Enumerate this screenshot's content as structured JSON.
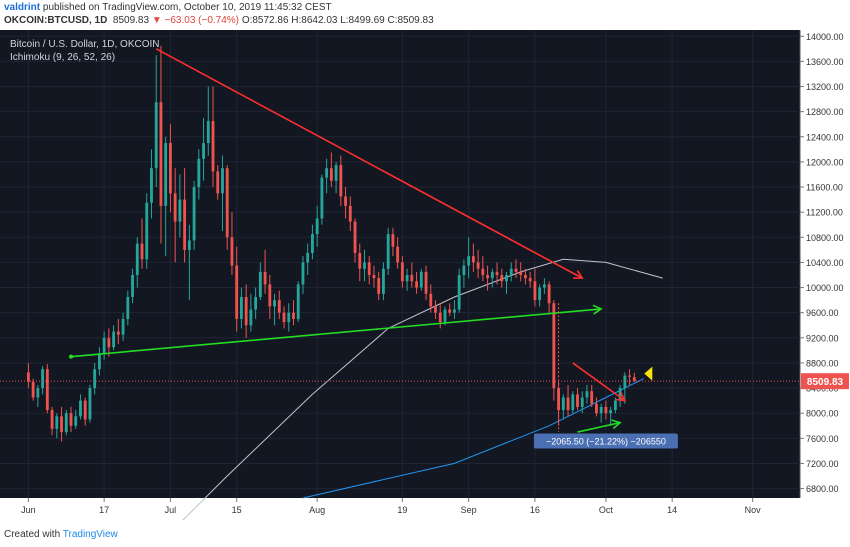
{
  "header": {
    "author": "valdrint",
    "published": " published on TradingView.com, October 10, 2019 11:45:32 CEST",
    "symbol": "OKCOIN:BTCUSD, 1D",
    "last": "8509.83",
    "change": "▼ −63.03 (−0.74%)",
    "ohlc": "O:8572.86 H:8642.03 L:8499.69 C:8509.83"
  },
  "legend": {
    "title": "Bitcoin / U.S. Dollar, 1D, OKCOIN",
    "indicator": "Ichimoku (9, 26, 52, 26)"
  },
  "price_tag": "8509.83",
  "measure_label": "−2065.50 (−21.22%) −206550",
  "footer": {
    "created_with": "Created with",
    "brand": "TradingView"
  },
  "colors": {
    "background": "#131722",
    "up": "#26a69a",
    "down": "#ef5350",
    "resistance": "#ff2e2e",
    "support": "#22dd22",
    "ma_long": "#c0c3cc",
    "ma_short": "#2196f3",
    "tag": "#ef5350",
    "measure": "#4a6fb3",
    "marker": "#f5e50a"
  },
  "chart_data": {
    "type": "candlestick",
    "title": "Bitcoin / U.S. Dollar, 1D, OKCOIN",
    "y_ticks": [
      6800,
      7200,
      7600,
      8000,
      8400,
      8800,
      9200,
      9600,
      10000,
      10400,
      10800,
      11200,
      11600,
      12000,
      12400,
      12800,
      13200,
      13600,
      14000
    ],
    "ylim": [
      6650,
      14100
    ],
    "x_ticks": [
      "Jun",
      "17",
      "Jul",
      "15",
      "Aug",
      "19",
      "Sep",
      "16",
      "Oct",
      "14",
      "Nov"
    ],
    "x_tick_days": [
      0,
      16,
      30,
      44,
      61,
      79,
      93,
      107,
      122,
      136,
      153
    ],
    "xlim": [
      -6,
      163
    ],
    "last_price": 8509.83,
    "candles_ohlc": [
      [
        8650,
        8800,
        8400,
        8500
      ],
      [
        8500,
        8550,
        8200,
        8250
      ],
      [
        8250,
        8450,
        8100,
        8400
      ],
      [
        8400,
        8750,
        8300,
        8700
      ],
      [
        8700,
        8780,
        8000,
        8050
      ],
      [
        8050,
        8100,
        7650,
        7750
      ],
      [
        7750,
        8000,
        7600,
        7950
      ],
      [
        7950,
        8100,
        7550,
        7700
      ],
      [
        7700,
        8050,
        7650,
        8000
      ],
      [
        8000,
        8100,
        7700,
        7800
      ],
      [
        7800,
        8050,
        7750,
        7950
      ],
      [
        7950,
        8300,
        7900,
        8200
      ],
      [
        8200,
        8250,
        7800,
        7900
      ],
      [
        7900,
        8450,
        7850,
        8400
      ],
      [
        8400,
        8800,
        8300,
        8700
      ],
      [
        8700,
        9050,
        8600,
        8950
      ],
      [
        8950,
        9300,
        8850,
        9200
      ],
      [
        9200,
        9350,
        8900,
        9050
      ],
      [
        9050,
        9400,
        9000,
        9300
      ],
      [
        9300,
        9500,
        9100,
        9250
      ],
      [
        9250,
        9600,
        9150,
        9500
      ],
      [
        9500,
        9950,
        9400,
        9850
      ],
      [
        9850,
        10300,
        9750,
        10200
      ],
      [
        10200,
        10800,
        10000,
        10700
      ],
      [
        10700,
        11100,
        10300,
        10450
      ],
      [
        10450,
        11500,
        10300,
        11350
      ],
      [
        11350,
        12200,
        11100,
        11900
      ],
      [
        11900,
        13700,
        11600,
        12950
      ],
      [
        12950,
        13850,
        10700,
        11300
      ],
      [
        11300,
        12400,
        10500,
        12300
      ],
      [
        12300,
        12600,
        11200,
        11500
      ],
      [
        11500,
        11900,
        10400,
        11050
      ],
      [
        11050,
        11800,
        10800,
        11400
      ],
      [
        11400,
        11900,
        10400,
        10600
      ],
      [
        10600,
        11000,
        9800,
        10750
      ],
      [
        10750,
        11700,
        10600,
        11600
      ],
      [
        11600,
        12200,
        11400,
        12050
      ],
      [
        12050,
        12700,
        11700,
        12300
      ],
      [
        12300,
        13200,
        12100,
        12650
      ],
      [
        12650,
        13200,
        11600,
        11850
      ],
      [
        11850,
        11950,
        11400,
        11500
      ],
      [
        11500,
        12100,
        10900,
        11900
      ],
      [
        11900,
        11950,
        10600,
        10800
      ],
      [
        10800,
        11200,
        10200,
        10350
      ],
      [
        10350,
        10650,
        9300,
        9500
      ],
      [
        9500,
        10000,
        9350,
        9850
      ],
      [
        9850,
        10050,
        9200,
        9400
      ],
      [
        9400,
        9900,
        9300,
        9650
      ],
      [
        9650,
        10000,
        9500,
        9850
      ],
      [
        9850,
        10400,
        9800,
        10250
      ],
      [
        10250,
        10600,
        9900,
        10050
      ],
      [
        10050,
        10200,
        9500,
        9700
      ],
      [
        9700,
        9900,
        9400,
        9800
      ],
      [
        9800,
        9950,
        9500,
        9600
      ],
      [
        9600,
        9700,
        9350,
        9450
      ],
      [
        9450,
        9750,
        9300,
        9600
      ],
      [
        9600,
        9800,
        9400,
        9500
      ],
      [
        9500,
        10100,
        9450,
        10050
      ],
      [
        10050,
        10500,
        9900,
        10400
      ],
      [
        10400,
        10700,
        10200,
        10550
      ],
      [
        10550,
        11000,
        10450,
        10850
      ],
      [
        10850,
        11300,
        10650,
        11100
      ],
      [
        11100,
        11800,
        11000,
        11750
      ],
      [
        11750,
        12050,
        11500,
        11900
      ],
      [
        11900,
        12150,
        11600,
        11700
      ],
      [
        11700,
        12000,
        11500,
        11950
      ],
      [
        11950,
        12100,
        11300,
        11450
      ],
      [
        11450,
        11600,
        11100,
        11300
      ],
      [
        11300,
        11450,
        10900,
        11050
      ],
      [
        11050,
        11100,
        10400,
        10550
      ],
      [
        10550,
        10700,
        10100,
        10300
      ],
      [
        10300,
        10600,
        10100,
        10400
      ],
      [
        10400,
        10500,
        10050,
        10200
      ],
      [
        10200,
        10350,
        10000,
        10150
      ],
      [
        10150,
        10250,
        9800,
        9900
      ],
      [
        9900,
        10400,
        9800,
        10300
      ],
      [
        10300,
        10950,
        10200,
        10850
      ],
      [
        10850,
        10950,
        10500,
        10650
      ],
      [
        10650,
        10800,
        10300,
        10400
      ],
      [
        10400,
        10500,
        10000,
        10100
      ],
      [
        10100,
        10300,
        9950,
        10200
      ],
      [
        10200,
        10400,
        10000,
        10100
      ],
      [
        10100,
        10250,
        9900,
        10000
      ],
      [
        10000,
        10300,
        9950,
        10250
      ],
      [
        10250,
        10350,
        9800,
        9900
      ],
      [
        9900,
        10050,
        9600,
        9700
      ],
      [
        9700,
        9800,
        9500,
        9600
      ],
      [
        9600,
        9750,
        9350,
        9450
      ],
      [
        9450,
        9700,
        9400,
        9650
      ],
      [
        9650,
        9750,
        9550,
        9600
      ],
      [
        9600,
        9800,
        9500,
        9650
      ],
      [
        9650,
        10300,
        9600,
        10200
      ],
      [
        10200,
        10450,
        10000,
        10350
      ],
      [
        10350,
        10800,
        10150,
        10500
      ],
      [
        10500,
        10700,
        10250,
        10400
      ],
      [
        10400,
        10600,
        10150,
        10300
      ],
      [
        10300,
        10500,
        10100,
        10200
      ],
      [
        10200,
        10350,
        9950,
        10150
      ],
      [
        10150,
        10300,
        10000,
        10250
      ],
      [
        10250,
        10400,
        10050,
        10200
      ],
      [
        10200,
        10300,
        10000,
        10100
      ],
      [
        10100,
        10250,
        9900,
        10200
      ],
      [
        10200,
        10400,
        10100,
        10300
      ],
      [
        10300,
        10450,
        10150,
        10250
      ],
      [
        10250,
        10400,
        10100,
        10200
      ],
      [
        10200,
        10300,
        10050,
        10150
      ],
      [
        10150,
        10250,
        10000,
        10100
      ],
      [
        10100,
        10300,
        9700,
        9800
      ],
      [
        9800,
        10050,
        9700,
        10000
      ],
      [
        10000,
        10150,
        9900,
        10050
      ],
      [
        10050,
        10100,
        9600,
        9750
      ],
      [
        9750,
        9800,
        8200,
        8400
      ],
      [
        8400,
        8500,
        7800,
        8050
      ],
      [
        8050,
        8300,
        7900,
        8250
      ],
      [
        8250,
        8450,
        7950,
        8050
      ],
      [
        8050,
        8350,
        8000,
        8300
      ],
      [
        8300,
        8400,
        8050,
        8100
      ],
      [
        8100,
        8350,
        8000,
        8250
      ],
      [
        8250,
        8450,
        8150,
        8350
      ],
      [
        8350,
        8450,
        8100,
        8150
      ],
      [
        8150,
        8250,
        7950,
        8000
      ],
      [
        8000,
        8150,
        7850,
        8100
      ],
      [
        8100,
        8200,
        7900,
        8000
      ],
      [
        8000,
        8100,
        7800,
        8050
      ],
      [
        8050,
        8250,
        8000,
        8200
      ],
      [
        8200,
        8450,
        8100,
        8400
      ],
      [
        8400,
        8650,
        8150,
        8600
      ],
      [
        8600,
        8700,
        8450,
        8580
      ],
      [
        8572.86,
        8642.03,
        8499.69,
        8509.83
      ]
    ],
    "moving_average_long": [
      [
        26,
        5800
      ],
      [
        42,
        7000
      ],
      [
        60,
        8300
      ],
      [
        76,
        9350
      ],
      [
        90,
        9850
      ],
      [
        104,
        10250
      ],
      [
        113,
        10450
      ],
      [
        122,
        10400
      ],
      [
        134,
        10150
      ]
    ],
    "moving_average_short": [
      [
        58,
        6650
      ],
      [
        90,
        7200
      ],
      [
        110,
        7800
      ],
      [
        122,
        8250
      ],
      [
        130,
        8550
      ]
    ],
    "resistance_line": [
      [
        27,
        13800
      ],
      [
        117,
        10150
      ]
    ],
    "support_line": [
      [
        9,
        8900
      ],
      [
        121,
        9660
      ]
    ],
    "channel_upper": [
      [
        115,
        8800
      ],
      [
        126,
        8200
      ]
    ],
    "channel_lower": [
      [
        116,
        7700
      ],
      [
        125,
        7850
      ]
    ],
    "measure": {
      "label": "−2065.50 (−21.22%) −206550",
      "day": 112
    }
  }
}
